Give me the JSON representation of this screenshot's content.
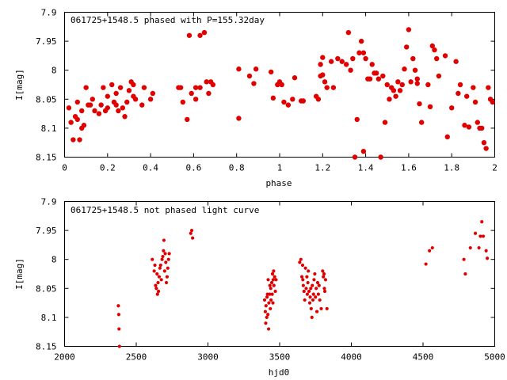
{
  "chart_data": [
    {
      "type": "scatter",
      "title": "061725+1548.5 phased with P=155.32day",
      "xlabel": "phase",
      "ylabel": "I[mag]",
      "xlim": [
        0,
        2
      ],
      "ylim": [
        7.9,
        8.15
      ],
      "y_inverted": true,
      "x_ticks": [
        0,
        0.2,
        0.4,
        0.6,
        0.8,
        1,
        1.2,
        1.4,
        1.6,
        1.8,
        2
      ],
      "x_tick_labels": [
        "0",
        "0.2",
        "0.4",
        "0.6",
        "0.8",
        "1",
        "1.2",
        "1.4",
        "1.6",
        "1.8",
        "2"
      ],
      "y_ticks": [
        7.9,
        7.95,
        8,
        8.05,
        8.1,
        8.15
      ],
      "y_tick_labels": [
        "7.9",
        "7.95",
        "8",
        "8.05",
        "8.1",
        "8.15"
      ],
      "grid": false,
      "color": "#e00000",
      "points": [
        [
          0.02,
          8.065
        ],
        [
          0.03,
          8.09
        ],
        [
          0.04,
          8.12
        ],
        [
          0.05,
          8.08
        ],
        [
          0.06,
          8.085
        ],
        [
          0.06,
          8.055
        ],
        [
          0.07,
          8.12
        ],
        [
          0.08,
          8.07
        ],
        [
          0.08,
          8.1
        ],
        [
          0.09,
          8.095
        ],
        [
          0.1,
          8.03
        ],
        [
          0.11,
          8.06
        ],
        [
          0.12,
          8.06
        ],
        [
          0.13,
          8.05
        ],
        [
          0.14,
          8.07
        ],
        [
          0.16,
          8.075
        ],
        [
          0.17,
          8.06
        ],
        [
          0.18,
          8.03
        ],
        [
          0.19,
          8.07
        ],
        [
          0.2,
          8.065
        ],
        [
          0.2,
          8.045
        ],
        [
          0.22,
          8.025
        ],
        [
          0.23,
          8.055
        ],
        [
          0.24,
          8.04
        ],
        [
          0.24,
          8.06
        ],
        [
          0.25,
          8.07
        ],
        [
          0.26,
          8.03
        ],
        [
          0.27,
          8.065
        ],
        [
          0.28,
          8.08
        ],
        [
          0.29,
          8.055
        ],
        [
          0.3,
          8.035
        ],
        [
          0.31,
          8.02
        ],
        [
          0.32,
          8.045
        ],
        [
          0.32,
          8.025
        ],
        [
          0.33,
          8.05
        ],
        [
          0.36,
          8.06
        ],
        [
          0.37,
          8.03
        ],
        [
          0.4,
          8.05
        ],
        [
          0.41,
          8.04
        ],
        [
          0.53,
          8.03
        ],
        [
          0.54,
          8.03
        ],
        [
          0.55,
          8.055
        ],
        [
          0.57,
          8.085
        ],
        [
          0.58,
          7.94
        ],
        [
          0.59,
          8.04
        ],
        [
          0.61,
          8.03
        ],
        [
          0.61,
          8.05
        ],
        [
          0.63,
          8.03
        ],
        [
          0.63,
          7.94
        ],
        [
          0.65,
          7.935
        ],
        [
          0.66,
          8.02
        ],
        [
          0.67,
          8.04
        ],
        [
          0.68,
          8.02
        ],
        [
          0.69,
          8.025
        ],
        [
          0.81,
          7.998
        ],
        [
          0.81,
          8.083
        ],
        [
          0.86,
          8.01
        ],
        [
          0.88,
          8.023
        ],
        [
          0.89,
          7.998
        ],
        [
          0.96,
          8.003
        ],
        [
          0.97,
          8.048
        ],
        [
          0.99,
          8.025
        ],
        [
          1.0,
          8.02
        ],
        [
          1.01,
          8.025
        ],
        [
          1.02,
          8.055
        ],
        [
          1.04,
          8.06
        ],
        [
          1.06,
          8.05
        ],
        [
          1.07,
          8.013
        ],
        [
          1.1,
          8.053
        ],
        [
          1.11,
          8.053
        ],
        [
          1.17,
          8.045
        ],
        [
          1.18,
          8.05
        ],
        [
          1.19,
          7.99
        ],
        [
          1.19,
          8.01
        ],
        [
          1.2,
          8.008
        ],
        [
          1.2,
          7.978
        ],
        [
          1.21,
          8.02
        ],
        [
          1.22,
          8.03
        ],
        [
          1.24,
          7.985
        ],
        [
          1.25,
          8.03
        ],
        [
          1.27,
          7.98
        ],
        [
          1.29,
          7.985
        ],
        [
          1.31,
          7.99
        ],
        [
          1.32,
          7.935
        ],
        [
          1.33,
          8.0
        ],
        [
          1.34,
          7.98
        ],
        [
          1.35,
          8.15
        ],
        [
          1.36,
          8.085
        ],
        [
          1.37,
          7.97
        ],
        [
          1.38,
          7.95
        ],
        [
          1.39,
          7.97
        ],
        [
          1.39,
          8.14
        ],
        [
          1.4,
          7.98
        ],
        [
          1.41,
          8.015
        ],
        [
          1.42,
          8.015
        ],
        [
          1.43,
          7.99
        ],
        [
          1.44,
          8.005
        ],
        [
          1.45,
          8.005
        ],
        [
          1.46,
          8.015
        ],
        [
          1.47,
          8.15
        ],
        [
          1.48,
          8.01
        ],
        [
          1.49,
          8.09
        ],
        [
          1.5,
          8.025
        ],
        [
          1.51,
          8.05
        ],
        [
          1.52,
          8.03
        ],
        [
          1.53,
          8.035
        ],
        [
          1.54,
          8.045
        ],
        [
          1.55,
          8.02
        ],
        [
          1.56,
          8.035
        ],
        [
          1.57,
          8.025
        ],
        [
          1.58,
          7.998
        ],
        [
          1.59,
          7.96
        ],
        [
          1.6,
          7.93
        ],
        [
          1.61,
          8.02
        ],
        [
          1.62,
          7.98
        ],
        [
          1.63,
          8.0
        ],
        [
          1.64,
          8.015
        ],
        [
          1.64,
          8.023
        ],
        [
          1.65,
          8.058
        ],
        [
          1.66,
          8.09
        ],
        [
          1.69,
          8.025
        ],
        [
          1.7,
          8.063
        ],
        [
          1.71,
          7.958
        ],
        [
          1.72,
          7.965
        ],
        [
          1.73,
          7.98
        ],
        [
          1.74,
          8.01
        ],
        [
          1.77,
          7.975
        ],
        [
          1.78,
          8.115
        ],
        [
          1.8,
          8.065
        ],
        [
          1.82,
          7.985
        ],
        [
          1.83,
          8.04
        ],
        [
          1.84,
          8.025
        ],
        [
          1.86,
          8.095
        ],
        [
          1.87,
          8.045
        ],
        [
          1.88,
          8.098
        ],
        [
          1.9,
          8.03
        ],
        [
          1.91,
          8.055
        ],
        [
          1.92,
          8.09
        ],
        [
          1.93,
          8.1
        ],
        [
          1.94,
          8.1
        ],
        [
          1.95,
          8.125
        ],
        [
          1.96,
          8.135
        ],
        [
          1.97,
          8.03
        ],
        [
          1.98,
          8.05
        ],
        [
          1.99,
          8.055
        ]
      ]
    },
    {
      "type": "scatter",
      "title": "061725+1548.5 not phased light curve",
      "xlabel": "hjd0",
      "ylabel": "I[mag]",
      "xlim": [
        2000,
        5000
      ],
      "ylim": [
        7.9,
        8.15
      ],
      "y_inverted": true,
      "x_ticks": [
        2000,
        2500,
        3000,
        3500,
        4000,
        4500,
        5000
      ],
      "x_tick_labels": [
        "2000",
        "2500",
        "3000",
        "3500",
        "4000",
        "4500",
        "5000"
      ],
      "y_ticks": [
        7.9,
        7.95,
        8,
        8.05,
        8.1,
        8.15
      ],
      "y_tick_labels": [
        "7.9",
        "7.95",
        "8",
        "8.05",
        "8.1",
        "8.15"
      ],
      "grid": false,
      "color": "#e00000",
      "points": [
        [
          2375,
          8.08
        ],
        [
          2378,
          8.095
        ],
        [
          2380,
          8.12
        ],
        [
          2383,
          8.15
        ],
        [
          2612,
          8.0
        ],
        [
          2625,
          8.02
        ],
        [
          2630,
          8.01
        ],
        [
          2635,
          8.045
        ],
        [
          2640,
          8.05
        ],
        [
          2645,
          8.025
        ],
        [
          2648,
          8.06
        ],
        [
          2652,
          8.04
        ],
        [
          2655,
          8.055
        ],
        [
          2660,
          8.03
        ],
        [
          2665,
          8.015
        ],
        [
          2670,
          8.01
        ],
        [
          2675,
          8.035
        ],
        [
          2680,
          8.0
        ],
        [
          2685,
          7.995
        ],
        [
          2690,
          7.985
        ],
        [
          2693,
          7.967
        ],
        [
          2698,
          8.02
        ],
        [
          2702,
          7.99
        ],
        [
          2706,
          8.005
        ],
        [
          2710,
          8.04
        ],
        [
          2715,
          8.03
        ],
        [
          2720,
          8.015
        ],
        [
          2725,
          8.0
        ],
        [
          2730,
          7.99
        ],
        [
          2880,
          7.955
        ],
        [
          2887,
          7.95
        ],
        [
          2893,
          7.963
        ],
        [
          3395,
          8.07
        ],
        [
          3400,
          8.09
        ],
        [
          3403,
          8.11
        ],
        [
          3405,
          8.08
        ],
        [
          3410,
          8.1
        ],
        [
          3412,
          8.065
        ],
        [
          3415,
          8.06
        ],
        [
          3418,
          8.095
        ],
        [
          3420,
          8.035
        ],
        [
          3423,
          8.12
        ],
        [
          3425,
          8.075
        ],
        [
          3430,
          8.06
        ],
        [
          3432,
          8.045
        ],
        [
          3435,
          8.085
        ],
        [
          3438,
          8.05
        ],
        [
          3440,
          8.07
        ],
        [
          3445,
          8.04
        ],
        [
          3448,
          8.06
        ],
        [
          3450,
          8.025
        ],
        [
          3453,
          8.075
        ],
        [
          3455,
          8.035
        ],
        [
          3458,
          8.02
        ],
        [
          3460,
          8.045
        ],
        [
          3465,
          8.03
        ],
        [
          3470,
          8.055
        ],
        [
          3475,
          8.035
        ],
        [
          3640,
          8.005
        ],
        [
          3648,
          8.0
        ],
        [
          3655,
          8.03
        ],
        [
          3660,
          8.01
        ],
        [
          3662,
          8.035
        ],
        [
          3665,
          8.045
        ],
        [
          3670,
          8.055
        ],
        [
          3675,
          8.07
        ],
        [
          3680,
          8.015
        ],
        [
          3685,
          8.05
        ],
        [
          3690,
          8.03
        ],
        [
          3693,
          8.06
        ],
        [
          3697,
          8.04
        ],
        [
          3700,
          8.02
        ],
        [
          3705,
          8.055
        ],
        [
          3710,
          8.075
        ],
        [
          3713,
          8.065
        ],
        [
          3717,
          8.05
        ],
        [
          3720,
          8.085
        ],
        [
          3725,
          8.1
        ],
        [
          3728,
          8.045
        ],
        [
          3732,
          8.07
        ],
        [
          3736,
          8.06
        ],
        [
          3740,
          8.035
        ],
        [
          3745,
          8.025
        ],
        [
          3750,
          8.065
        ],
        [
          3755,
          8.05
        ],
        [
          3760,
          8.09
        ],
        [
          3765,
          8.04
        ],
        [
          3770,
          8.06
        ],
        [
          3775,
          8.045
        ],
        [
          3780,
          8.07
        ],
        [
          3790,
          8.085
        ],
        [
          3800,
          8.02
        ],
        [
          3805,
          8.03
        ],
        [
          3810,
          8.025
        ],
        [
          3812,
          8.05
        ],
        [
          3815,
          8.055
        ],
        [
          3820,
          8.035
        ],
        [
          3830,
          8.085
        ],
        [
          4520,
          8.008
        ],
        [
          4545,
          7.985
        ],
        [
          4565,
          7.98
        ],
        [
          4785,
          8.0
        ],
        [
          4795,
          8.025
        ],
        [
          4830,
          7.98
        ],
        [
          4865,
          7.955
        ],
        [
          4890,
          7.98
        ],
        [
          4900,
          7.96
        ],
        [
          4910,
          7.935
        ],
        [
          4920,
          7.96
        ],
        [
          4940,
          7.985
        ],
        [
          4948,
          7.998
        ]
      ]
    }
  ]
}
